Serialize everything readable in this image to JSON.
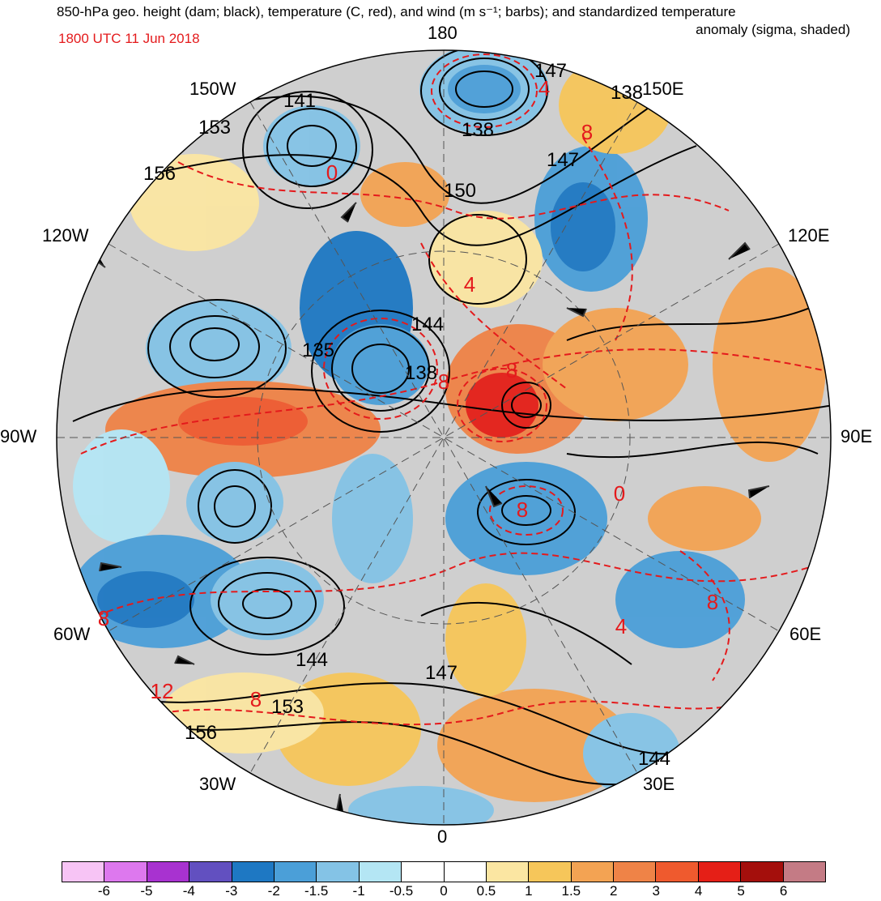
{
  "header": {
    "title_line1": "850-hPa geo. height (dam; black), temperature (C, red), and wind (m s⁻¹; barbs); and standardized temperature",
    "title_line2": "anomaly (sigma, shaded)",
    "valid_time": "1800 UTC 11 Jun 2018"
  },
  "map": {
    "projection": "north-polar-stereographic",
    "longitude_labels": [
      "180",
      "150E",
      "120E",
      "90E",
      "60E",
      "30E",
      "0",
      "30W",
      "60W",
      "90W",
      "120W",
      "150W"
    ],
    "height_contour_labels": [
      "147",
      "138",
      "141",
      "153",
      "156",
      "150",
      "144",
      "135",
      "138",
      "147",
      "144",
      "147",
      "153",
      "156",
      "144",
      "138"
    ],
    "temperature_contour_labels": [
      "8",
      "4",
      "8",
      "8",
      "0",
      "8",
      "4",
      "8",
      "8",
      "12",
      "8",
      "4",
      "0"
    ],
    "colors": {
      "height_contour": "#000000",
      "temperature_contour": "#e41a1c",
      "land": "#c8c8c8"
    }
  },
  "colorbar": {
    "colors": [
      "#f7c4f5",
      "#dd78ee",
      "#a832d0",
      "#6250c0",
      "#1e78c3",
      "#4b9fd8",
      "#84c3e6",
      "#b4e6f4",
      "#ffffff",
      "#ffffff",
      "#fbe6a2",
      "#f6c65a",
      "#f3a353",
      "#ef8347",
      "#ef5a2e",
      "#e51f17",
      "#a40f0c",
      "#c47b85"
    ],
    "tick_labels": [
      "-6",
      "-5",
      "-4",
      "-3",
      "-2",
      "-1.5",
      "-1",
      "-0.5",
      "0",
      "0.5",
      "1",
      "1.5",
      "2",
      "3",
      "4",
      "5",
      "6"
    ]
  }
}
